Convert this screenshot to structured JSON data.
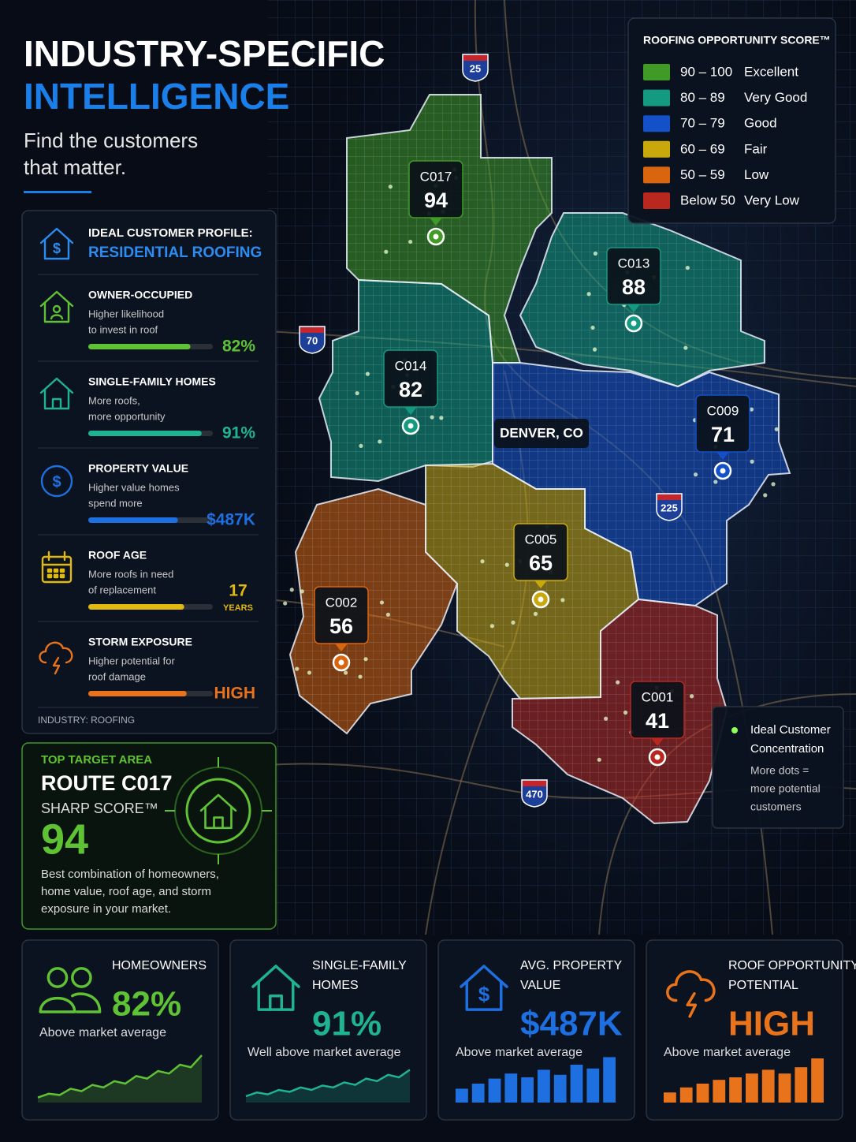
{
  "header": {
    "title_line1": "INDUSTRY-SPECIFIC",
    "title_line2": "INTELLIGENCE",
    "subtitle_lines": [
      "Find the customers",
      "that matter."
    ]
  },
  "profile": {
    "heading": "IDEAL CUSTOMER PROFILE:",
    "subheading": "RESIDENTIAL ROOFING",
    "items": [
      {
        "title": "OWNER-OCCUPIED",
        "description_lines": [
          "Higher likelihood",
          "to invest in roof"
        ],
        "value": "82%",
        "bar": 82,
        "color": "#5fc234"
      },
      {
        "title": "SINGLE-FAMILY HOMES",
        "description_lines": [
          "More roofs,",
          "more opportunity"
        ],
        "value": "91%",
        "bar": 91,
        "color": "#1fb38f"
      },
      {
        "title": "PROPERTY VALUE",
        "description_lines": [
          "Higher value homes",
          "spend more"
        ],
        "value": "$487K",
        "bar": 72,
        "color": "#1e6fe0"
      },
      {
        "title": "ROOF AGE",
        "description_lines": [
          "More roofs in need",
          "of replacement"
        ],
        "value": "17",
        "unit": "YEARS",
        "bar": 77,
        "color": "#e2b90f"
      },
      {
        "title": "STORM EXPOSURE",
        "description_lines": [
          "Higher potential for",
          "roof damage"
        ],
        "value": "HIGH",
        "bar": 79,
        "color": "#e8731a"
      }
    ],
    "footer": "INDUSTRY: ROOFING"
  },
  "top_target": {
    "label": "TOP TARGET AREA",
    "route": "ROUTE C017",
    "score_label": "SHARP SCORE™",
    "score": 94,
    "description_lines": [
      "Best combination of homeowners,",
      "home value, roof age, and storm",
      "exposure in your market."
    ]
  },
  "map": {
    "legend": {
      "title": "ROOFING OPPORTUNITY SCORE™",
      "entries": [
        {
          "range": "90 – 100",
          "label": "Excellent",
          "color": "#3f9a26"
        },
        {
          "range": "80 – 89",
          "label": "Very Good",
          "color": "#139a80"
        },
        {
          "range": "70 – 79",
          "label": "Good",
          "color": "#1450c8"
        },
        {
          "range": "60 – 69",
          "label": "Fair",
          "color": "#c9a80c"
        },
        {
          "range": "50 – 59",
          "label": "Low",
          "color": "#d9650f"
        },
        {
          "range": "Below 50",
          "label": "Very Low",
          "color": "#b8281f"
        }
      ]
    },
    "city": "DENVER, CO",
    "highways": [
      "25",
      "70",
      "225",
      "470"
    ],
    "regions": [
      {
        "id": "C017",
        "score": 94,
        "color": "#3f9a26"
      },
      {
        "id": "C013",
        "score": 88,
        "color": "#139a80"
      },
      {
        "id": "C014",
        "score": 82,
        "color": "#139a80"
      },
      {
        "id": "C009",
        "score": 71,
        "color": "#1450c8"
      },
      {
        "id": "C005",
        "score": 65,
        "color": "#c9a80c"
      },
      {
        "id": "C002",
        "score": 56,
        "color": "#d9650f"
      },
      {
        "id": "C001",
        "score": 41,
        "color": "#b8281f"
      }
    ],
    "note": {
      "title_lines": [
        "Ideal Customer",
        "Concentration"
      ],
      "text_lines": [
        "More dots =",
        "more potential",
        "customers"
      ]
    }
  },
  "stats": [
    {
      "title_lines": [
        "HOMEOWNERS"
      ],
      "value": "82%",
      "caption": "Above market average",
      "color": "#5fc234",
      "chart": "line",
      "trend": [
        8,
        14,
        12,
        22,
        18,
        28,
        24,
        34,
        30,
        42,
        38,
        50,
        46,
        60,
        56,
        75
      ]
    },
    {
      "title_lines": [
        "SINGLE-FAMILY",
        "HOMES"
      ],
      "value": "91%",
      "caption": "Well above market average",
      "color": "#1fb38f",
      "chart": "line",
      "trend": [
        10,
        16,
        13,
        20,
        17,
        24,
        20,
        27,
        24,
        32,
        28,
        38,
        34,
        44,
        40,
        52
      ]
    },
    {
      "title_lines": [
        "AVG. PROPERTY",
        "VALUE"
      ],
      "value": "$487K",
      "caption": "Above market average",
      "color": "#1e6fe0",
      "chart": "bar",
      "trend": [
        22,
        30,
        38,
        46,
        40,
        52,
        44,
        60,
        54,
        72
      ]
    },
    {
      "title_lines": [
        "ROOF OPPORTUNITY",
        "POTENTIAL"
      ],
      "value": "HIGH",
      "caption": "Above market average",
      "color": "#e8731a",
      "chart": "bar",
      "trend": [
        16,
        24,
        30,
        36,
        40,
        46,
        52,
        46,
        56,
        70
      ]
    }
  ]
}
